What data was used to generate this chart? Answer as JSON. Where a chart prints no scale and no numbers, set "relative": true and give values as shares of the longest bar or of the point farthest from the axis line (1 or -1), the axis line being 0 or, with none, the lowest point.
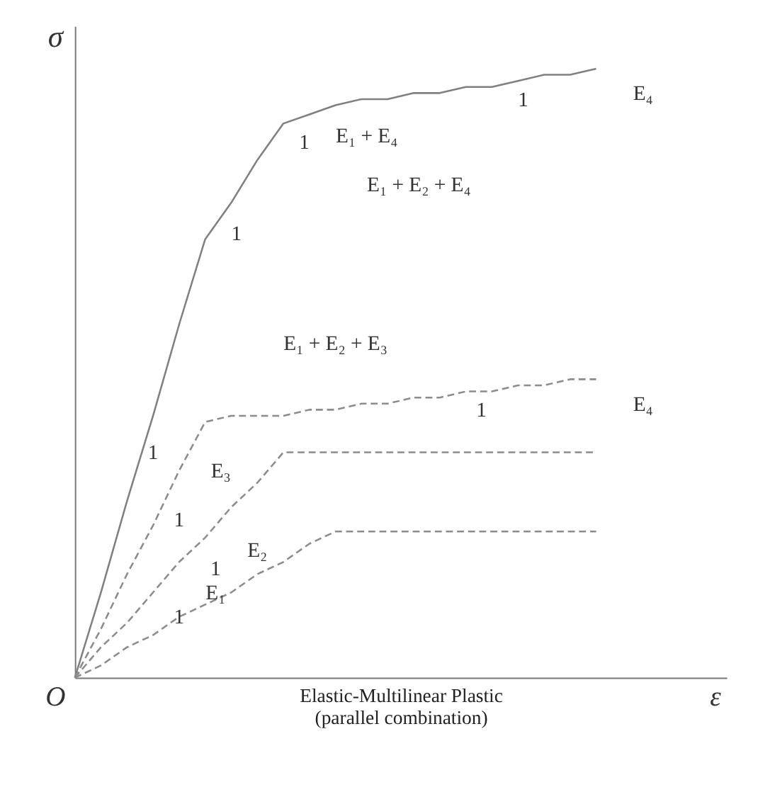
{
  "chart_data": {
    "type": "line",
    "relative": true,
    "xlabel": "Elastic-Multilinear Plastic\n(parallel combination)",
    "ylabel": "σ",
    "marker": "none",
    "categories": [
      null,
      null,
      null,
      null,
      null,
      null,
      null,
      null,
      null,
      null,
      null,
      null,
      null,
      null,
      null,
      null,
      null,
      null,
      null,
      null,
      null,
      null,
      null,
      null,
      null,
      null
    ],
    "series": [
      {
        "values": [
          0,
          0.14,
          0.29,
          0.43,
          0.58,
          0.72,
          0.78,
          0.85,
          0.91,
          0.925,
          0.94,
          0.95,
          0.95,
          0.96,
          0.96,
          0.97,
          0.97,
          0.98,
          0.99,
          0.99,
          1,
          null,
          null,
          null,
          null,
          null
        ],
        "color": "#808080",
        "line_style": "solid"
      },
      {
        "values": [
          0,
          0.08,
          0.17,
          0.25,
          0.34,
          0.42,
          0.43,
          0.43,
          0.43,
          0.44,
          0.44,
          0.45,
          0.45,
          0.46,
          0.46,
          0.47,
          0.47,
          0.48,
          0.48,
          0.49,
          0.49,
          null,
          null,
          null,
          null,
          null
        ],
        "color": "#8c8c8c",
        "line_style": "dashed"
      },
      {
        "values": [
          0,
          0.05,
          0.09,
          0.14,
          0.19,
          0.23,
          0.28,
          0.32,
          0.37,
          0.37,
          0.37,
          0.37,
          0.37,
          0.37,
          0.37,
          0.37,
          0.37,
          0.37,
          0.37,
          0.37,
          0.37,
          null,
          null,
          null,
          null,
          null
        ],
        "color": "#8c8c8c",
        "line_style": "dashed"
      },
      {
        "values": [
          0,
          0.02,
          0.05,
          0.07,
          0.1,
          0.12,
          0.14,
          0.17,
          0.19,
          0.22,
          0.24,
          0.24,
          0.24,
          0.24,
          0.24,
          0.24,
          0.24,
          0.24,
          0.24,
          0.24,
          0.24,
          null,
          null,
          null,
          null,
          null
        ],
        "color": "#8c8c8c",
        "line_style": "dashed"
      }
    ],
    "annotations": [
      "O",
      "ε",
      "1",
      "E₁ + E₄",
      "1",
      "E₄",
      "E₁ + E₂ + E₄",
      "1",
      "E₁ + E₂ + E₃",
      "1",
      "E₄",
      "1",
      "E₃",
      "1",
      "E₂",
      "1",
      "E₁",
      "1"
    ]
  }
}
